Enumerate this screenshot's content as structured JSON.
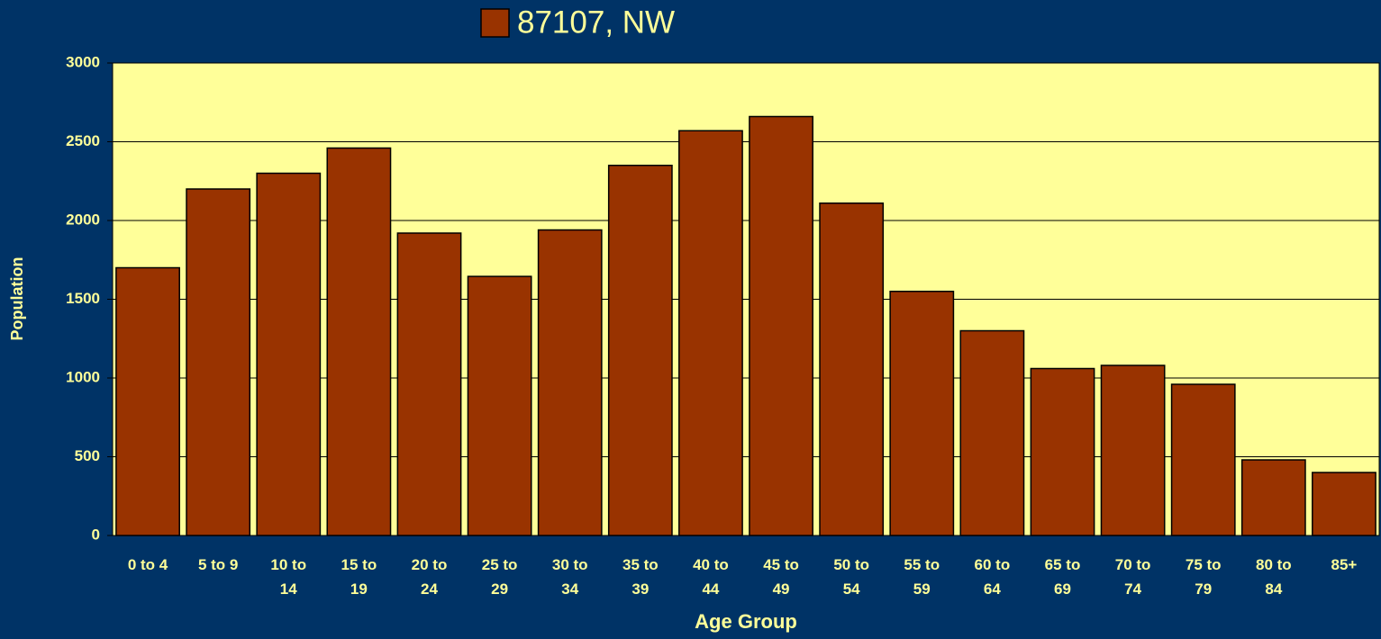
{
  "chart_data": {
    "type": "bar",
    "legend": "87107, NW",
    "x_label": "Age Group",
    "y_label": "Population",
    "categories": [
      "0 to 4",
      "5 to 9",
      "10 to 14",
      "15 to 19",
      "20 to 24",
      "25 to 29",
      "30 to 34",
      "35 to 39",
      "40 to 44",
      "45 to 49",
      "50 to 54",
      "55 to 59",
      "60 to 64",
      "65 to 69",
      "70 to 74",
      "75 to 79",
      "80 to 84",
      "85+"
    ],
    "values": [
      1700,
      2200,
      2300,
      2460,
      1920,
      1645,
      1940,
      2350,
      2570,
      2660,
      2110,
      1550,
      1300,
      1060,
      1080,
      960,
      480,
      400
    ],
    "color": "#993300",
    "ylim": [
      0,
      3000
    ],
    "yticks": [
      0,
      500,
      1000,
      1500,
      2000,
      2500,
      3000
    ],
    "grid": true
  }
}
